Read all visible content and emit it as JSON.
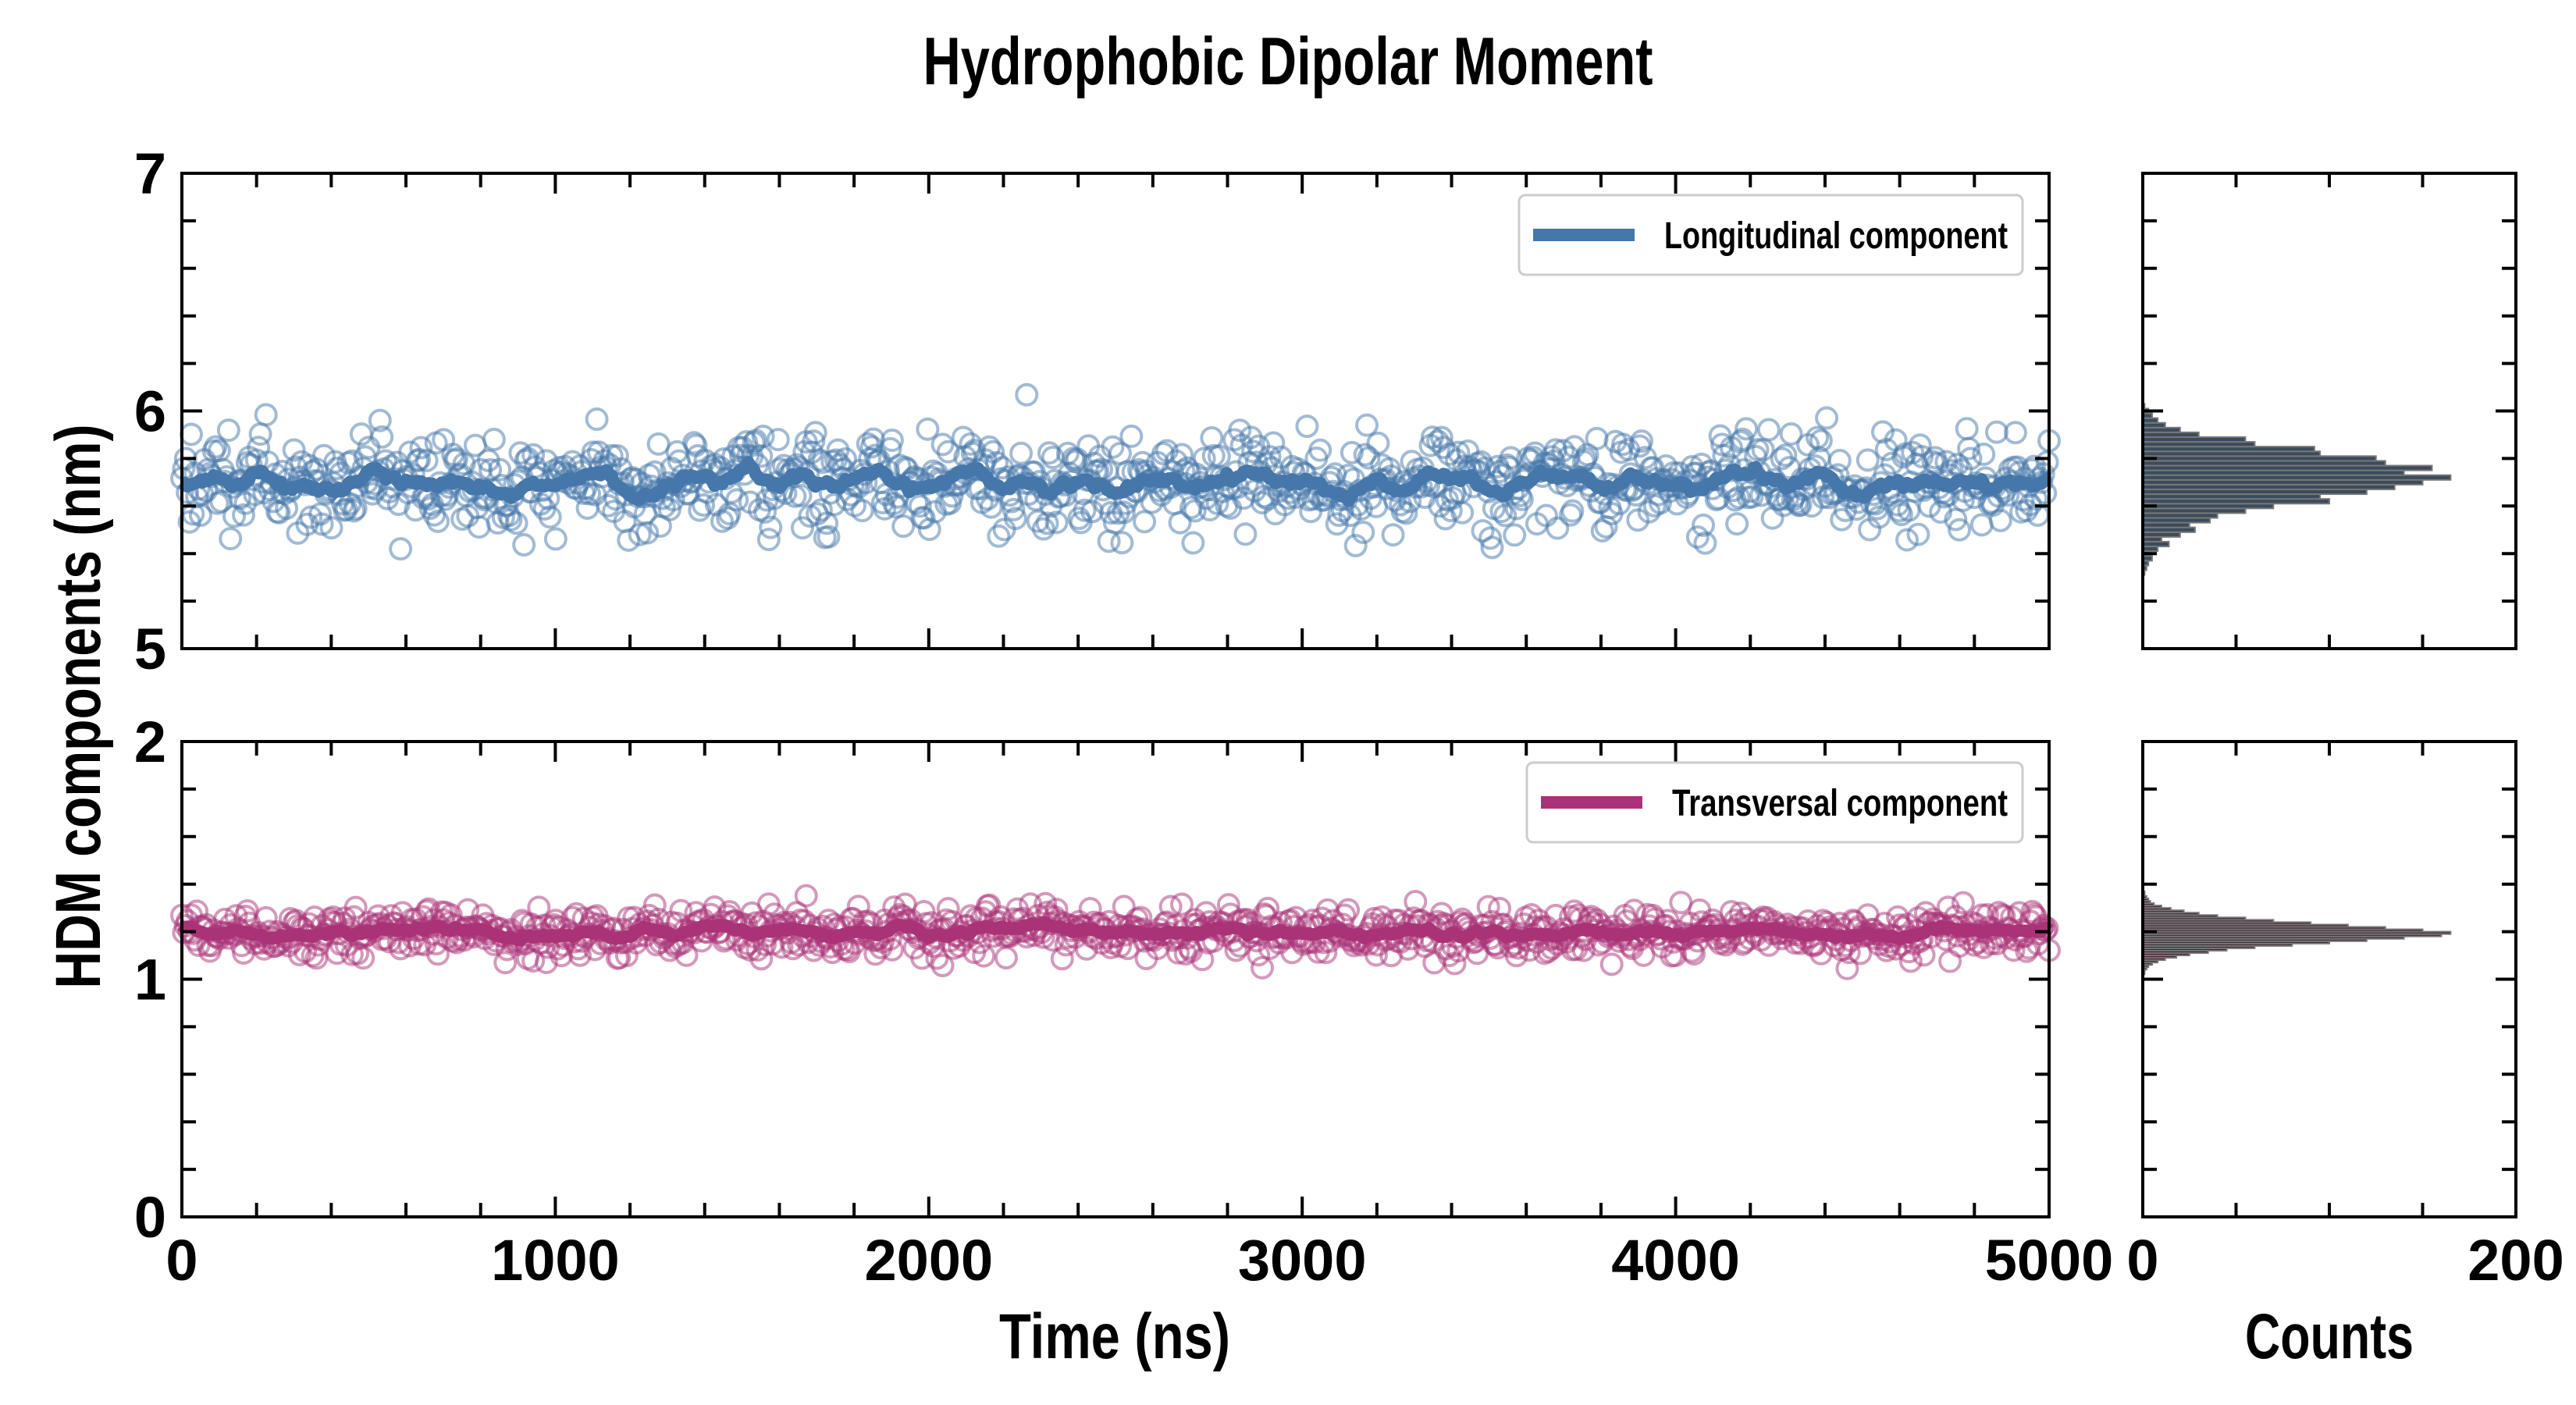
{
  "title": "Hydrophobic Dipolar Moment",
  "chart_data": [
    {
      "type": "scatter",
      "panel": "top",
      "series": [
        {
          "name": "Longitudinal component",
          "color": "#4677aa",
          "mean": 5.7,
          "std": 0.11,
          "n_points": 1000,
          "smoothed_mean": 5.7
        }
      ],
      "legend": "Longitudinal component",
      "legend_position": "top-right",
      "xlim": [
        0,
        5000
      ],
      "ylim": [
        5,
        7
      ],
      "yticks": [
        "5",
        "6",
        "7"
      ],
      "xticks": [
        "0",
        "1000",
        "2000",
        "3000",
        "4000",
        "5000"
      ]
    },
    {
      "type": "scatter",
      "panel": "bottom",
      "series": [
        {
          "name": "Transversal component",
          "color": "#aa3377",
          "mean": 1.2,
          "std": 0.055,
          "n_points": 1000,
          "smoothed_mean": 1.2
        }
      ],
      "legend": "Transversal component",
      "legend_position": "top-right",
      "xlim": [
        0,
        5000
      ],
      "ylim": [
        0,
        2
      ],
      "yticks": [
        "0",
        "1",
        "2"
      ],
      "xticks": [
        "0",
        "1000",
        "2000",
        "3000",
        "4000",
        "5000"
      ],
      "xlabel": "Time (ns)"
    },
    {
      "type": "bar",
      "orientation": "horizontal",
      "panel": "top-histogram",
      "color": "#3b4b5c",
      "bin_start": 5.31,
      "bin_width": 0.02,
      "counts": [
        1,
        2,
        3,
        5,
        4,
        8,
        14,
        10,
        20,
        28,
        25,
        36,
        40,
        55,
        70,
        100,
        95,
        120,
        135,
        150,
        165,
        140,
        155,
        130,
        125,
        95,
        92,
        60,
        55,
        30,
        20,
        12,
        8,
        5,
        3,
        1
      ],
      "xlim": [
        0,
        200
      ],
      "ylim": [
        5,
        7
      ]
    },
    {
      "type": "bar",
      "orientation": "horizontal",
      "panel": "bottom-histogram",
      "color": "#3a1c2c",
      "bin_start": 1.02,
      "bin_width": 0.01,
      "counts": [
        1,
        1,
        2,
        3,
        5,
        8,
        12,
        18,
        25,
        35,
        45,
        60,
        80,
        100,
        120,
        140,
        160,
        165,
        150,
        130,
        110,
        90,
        70,
        55,
        40,
        30,
        22,
        15,
        10,
        6,
        4,
        3,
        2,
        1,
        1
      ],
      "xlim": [
        0,
        200
      ],
      "ylim": [
        0,
        2
      ],
      "xticks": [
        "0",
        "200"
      ],
      "xlabel": "Counts"
    }
  ],
  "ylabel": "HDM components (nm)"
}
